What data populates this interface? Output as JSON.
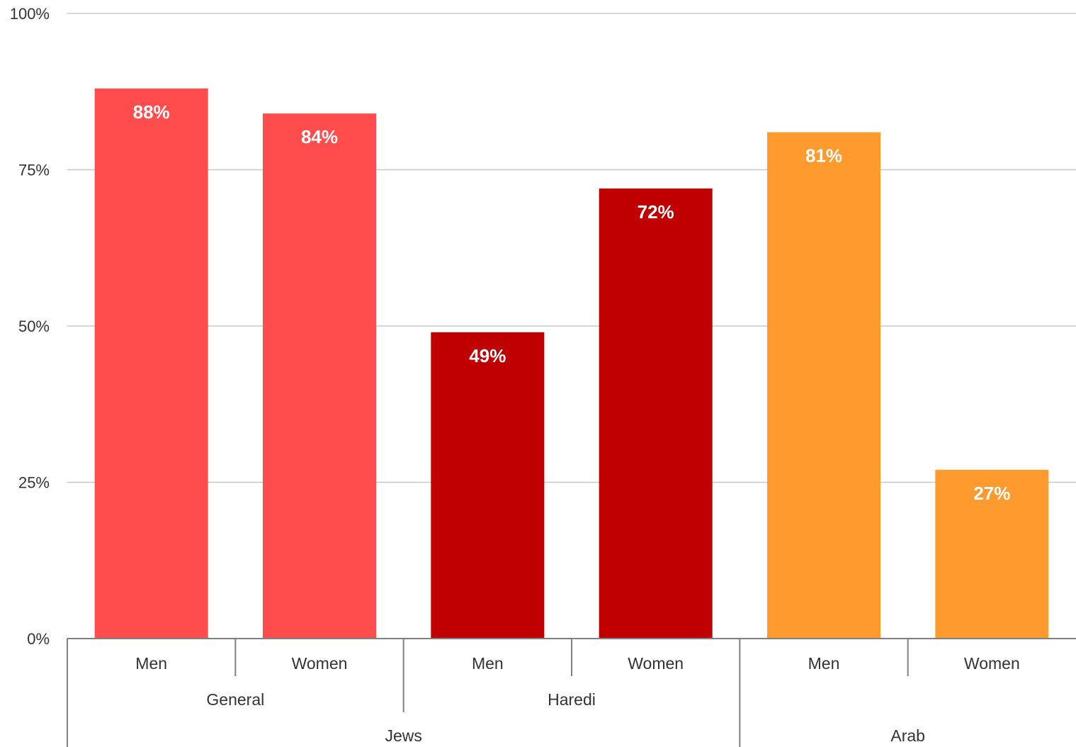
{
  "chart_data": {
    "type": "bar",
    "ylim": [
      0,
      100
    ],
    "y_ticks": [
      "0%",
      "25%",
      "50%",
      "75%",
      "100%"
    ],
    "y_tick_values": [
      0,
      25,
      50,
      75,
      100
    ],
    "grid": true,
    "categories": [
      "Men",
      "Women",
      "Men",
      "Women",
      "Men",
      "Women"
    ],
    "values": [
      88,
      84,
      49,
      72,
      81,
      27
    ],
    "data_labels": [
      "88%",
      "84%",
      "49%",
      "72%",
      "81%",
      "27%"
    ],
    "bar_colors": [
      "#ff4d4d",
      "#ff4d4d",
      "#c00000",
      "#c00000",
      "#ff9b2e",
      "#ff9b2e"
    ],
    "group_level_1": [
      {
        "label": "General",
        "span": [
          0,
          1
        ]
      },
      {
        "label": "Haredi",
        "span": [
          2,
          3
        ]
      }
    ],
    "group_level_2": [
      {
        "label": "Jews",
        "span": [
          0,
          3
        ]
      },
      {
        "label": "Arab",
        "span": [
          4,
          5
        ]
      }
    ]
  }
}
